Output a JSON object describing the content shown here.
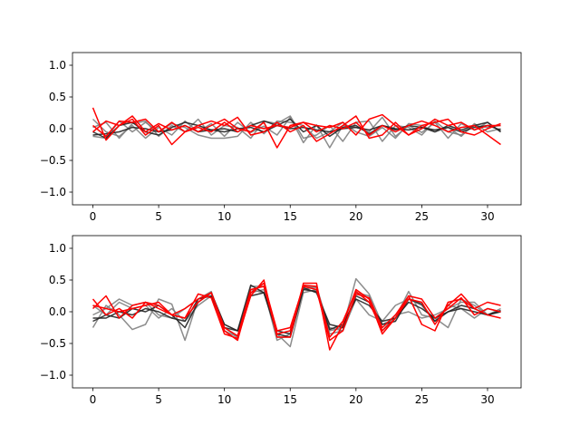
{
  "figure": {
    "background": "#ffffff"
  },
  "colors": {
    "gray": "#7f7f7f",
    "black": "#222222",
    "red": "#ff0000"
  },
  "chart_data": [
    {
      "type": "line",
      "xlim": [
        -1.55,
        32.55
      ],
      "ylim": [
        -1.2,
        1.2
      ],
      "xticks": [
        0,
        5,
        10,
        15,
        20,
        25,
        30
      ],
      "yticks": [
        -1.0,
        -0.5,
        0.0,
        0.5,
        1.0
      ],
      "xtick_labels": [
        "0",
        "5",
        "10",
        "15",
        "20",
        "25",
        "30"
      ],
      "ytick_labels": [
        "−1.0",
        "−0.5",
        "0.0",
        "0.5",
        "1.0"
      ],
      "x": [
        0,
        1,
        2,
        3,
        4,
        5,
        6,
        7,
        8,
        9,
        10,
        11,
        12,
        13,
        14,
        15,
        16,
        17,
        18,
        19,
        20,
        21,
        22,
        23,
        24,
        25,
        26,
        27,
        28,
        29,
        30,
        31
      ],
      "series": [
        {
          "color": "gray",
          "opacity": 0.9,
          "values": [
            0.15,
            -0.05,
            -0.12,
            0.05,
            -0.15,
            0.02,
            -0.1,
            0.12,
            -0.05,
            0.08,
            -0.12,
            0.1,
            -0.06,
            0.04,
            -0.1,
            0.18,
            -0.22,
            0.06,
            -0.3,
            0.05,
            0.02,
            -0.05,
            0.18,
            -0.12,
            0.05,
            -0.06,
            0.1,
            -0.15,
            0.08,
            -0.02,
            0.1,
            -0.05
          ]
        },
        {
          "color": "gray",
          "opacity": 0.9,
          "values": [
            0.02,
            0.1,
            -0.15,
            0.08,
            0.12,
            -0.12,
            0.05,
            -0.05,
            0.15,
            -0.1,
            0.05,
            0.02,
            -0.15,
            0.12,
            0.08,
            0.2,
            -0.15,
            -0.1,
            0.05,
            -0.2,
            0.1,
            0.12,
            -0.2,
            0.05,
            0.02,
            -0.1,
            0.12,
            -0.05,
            -0.1,
            0.05,
            0.02,
            0.05
          ]
        },
        {
          "color": "gray",
          "opacity": 0.9,
          "values": [
            -0.12,
            -0.15,
            0.12,
            -0.05,
            0.1,
            -0.05,
            0.08,
            0.02,
            -0.1,
            -0.15,
            -0.15,
            -0.12,
            0.1,
            -0.08,
            0.12,
            0.1,
            0.05,
            -0.15,
            -0.05,
            0.1,
            -0.05,
            -0.12,
            0.02,
            -0.15,
            0.08,
            0.05,
            -0.05,
            0.02,
            -0.12,
            0.08,
            -0.05,
            0.0
          ]
        },
        {
          "color": "black",
          "opacity": 0.9,
          "values": [
            -0.05,
            -0.15,
            0.05,
            0.1,
            -0.05,
            -0.1,
            0.02,
            0.1,
            0.05,
            -0.02,
            0.0,
            -0.05,
            0.05,
            0.12,
            0.05,
            0.15,
            -0.05,
            0.05,
            -0.12,
            0.02,
            0.05,
            -0.08,
            0.05,
            -0.02,
            0.05,
            0.02,
            -0.05,
            0.05,
            -0.02,
            0.05,
            0.1,
            -0.05
          ]
        },
        {
          "color": "black",
          "opacity": 0.9,
          "values": [
            -0.1,
            -0.08,
            -0.05,
            0.02,
            0.0,
            -0.05,
            -0.02,
            0.05,
            -0.05,
            -0.02,
            -0.05,
            0.0,
            0.02,
            -0.05,
            0.05,
            0.0,
            0.02,
            -0.02,
            -0.05,
            0.0,
            0.02,
            -0.02,
            0.05,
            0.0,
            -0.02,
            0.02,
            -0.02,
            0.02,
            -0.05,
            0.02,
            0.05,
            -0.02
          ]
        },
        {
          "color": "red",
          "opacity": 1.0,
          "values": [
            0.33,
            -0.18,
            0.05,
            0.2,
            -0.05,
            0.08,
            -0.02,
            0.05,
            -0.05,
            0.05,
            0.15,
            0.0,
            -0.05,
            0.1,
            -0.3,
            0.05,
            0.1,
            -0.05,
            0.05,
            0.0,
            0.1,
            -0.1,
            0.05,
            -0.05,
            0.05,
            0.12,
            0.05,
            -0.05,
            0.02,
            0.05,
            -0.1,
            -0.25
          ]
        },
        {
          "color": "red",
          "opacity": 1.0,
          "values": [
            0.05,
            -0.12,
            0.12,
            0.1,
            0.15,
            -0.05,
            0.1,
            -0.05,
            0.05,
            0.12,
            0.05,
            0.18,
            -0.1,
            -0.05,
            0.1,
            -0.05,
            0.05,
            -0.2,
            -0.08,
            0.05,
            0.2,
            -0.15,
            -0.1,
            0.1,
            -0.1,
            0.05,
            0.1,
            0.15,
            -0.05,
            -0.1,
            0.0,
            0.08
          ]
        },
        {
          "color": "red",
          "opacity": 1.0,
          "values": [
            -0.05,
            0.12,
            0.05,
            0.15,
            -0.1,
            0.05,
            -0.25,
            -0.05,
            0.02,
            -0.05,
            0.1,
            -0.05,
            0.05,
            0.0,
            0.05,
            0.02,
            0.1,
            0.05,
            0.02,
            0.1,
            -0.1,
            0.15,
            0.22,
            0.05,
            -0.1,
            0.0,
            0.15,
            0.05,
            0.1,
            -0.02,
            0.05,
            0.05
          ]
        }
      ]
    },
    {
      "type": "line",
      "xlim": [
        -1.55,
        32.55
      ],
      "ylim": [
        -1.2,
        1.2
      ],
      "xticks": [
        0,
        5,
        10,
        15,
        20,
        25,
        30
      ],
      "yticks": [
        -1.0,
        -0.5,
        0.0,
        0.5,
        1.0
      ],
      "xtick_labels": [
        "0",
        "5",
        "10",
        "15",
        "20",
        "25",
        "30"
      ],
      "ytick_labels": [
        "−1.0",
        "−0.5",
        "0.0",
        "0.5",
        "1.0"
      ],
      "x": [
        0,
        1,
        2,
        3,
        4,
        5,
        6,
        7,
        8,
        9,
        10,
        11,
        12,
        13,
        14,
        15,
        16,
        17,
        18,
        19,
        20,
        21,
        22,
        23,
        24,
        25,
        26,
        27,
        28,
        29,
        30,
        31
      ],
      "series": [
        {
          "color": "gray",
          "opacity": 0.9,
          "values": [
            -0.25,
            0.1,
            -0.05,
            -0.28,
            -0.2,
            0.2,
            0.12,
            -0.45,
            0.2,
            0.32,
            -0.3,
            -0.4,
            0.3,
            0.35,
            -0.45,
            -0.35,
            0.35,
            0.4,
            -0.3,
            -0.25,
            0.52,
            0.28,
            -0.2,
            -0.1,
            0.32,
            -0.05,
            -0.1,
            -0.25,
            0.2,
            0.1,
            -0.05,
            0.05
          ]
        },
        {
          "color": "gray",
          "opacity": 0.9,
          "values": [
            0.1,
            -0.05,
            0.15,
            0.05,
            0.1,
            -0.1,
            0.05,
            -0.15,
            0.1,
            0.25,
            -0.2,
            -0.3,
            0.35,
            0.3,
            -0.35,
            -0.55,
            0.3,
            0.35,
            -0.25,
            -0.3,
            0.2,
            -0.05,
            -0.15,
            0.1,
            0.2,
            0.1,
            -0.15,
            0.1,
            0.05,
            -0.1,
            0.05,
            0.0
          ]
        },
        {
          "color": "gray",
          "opacity": 0.9,
          "values": [
            -0.05,
            0.05,
            0.2,
            0.1,
            0.15,
            -0.05,
            -0.1,
            0.05,
            0.2,
            0.3,
            -0.25,
            -0.4,
            0.4,
            0.4,
            -0.4,
            -0.4,
            0.4,
            0.38,
            -0.35,
            -0.3,
            0.3,
            0.25,
            -0.3,
            -0.05,
            0.0,
            -0.1,
            -0.05,
            0.05,
            0.15,
            0.15,
            -0.05,
            0.0
          ]
        },
        {
          "color": "black",
          "opacity": 0.9,
          "values": [
            -0.15,
            -0.05,
            -0.1,
            0.05,
            0.0,
            0.1,
            -0.05,
            -0.25,
            0.15,
            0.3,
            -0.2,
            -0.3,
            0.42,
            0.3,
            -0.3,
            -0.35,
            0.38,
            0.3,
            -0.2,
            -0.25,
            0.25,
            0.15,
            -0.2,
            -0.15,
            0.2,
            0.12,
            -0.15,
            0.0,
            0.1,
            0.05,
            -0.05,
            0.0
          ]
        },
        {
          "color": "black",
          "opacity": 0.9,
          "values": [
            -0.1,
            -0.1,
            0.0,
            -0.05,
            0.05,
            0.0,
            -0.1,
            -0.15,
            0.2,
            0.25,
            -0.25,
            -0.3,
            0.25,
            0.3,
            -0.35,
            -0.4,
            0.35,
            0.32,
            -0.28,
            -0.2,
            0.2,
            0.1,
            -0.15,
            -0.1,
            0.15,
            0.05,
            -0.1,
            0.0,
            0.05,
            0.0,
            -0.05,
            0.02
          ]
        },
        {
          "color": "red",
          "opacity": 1.0,
          "values": [
            0.2,
            -0.05,
            0.05,
            -0.1,
            0.15,
            0.05,
            -0.05,
            -0.1,
            0.28,
            0.22,
            -0.35,
            -0.42,
            0.25,
            0.5,
            -0.4,
            -0.4,
            0.45,
            0.45,
            -0.6,
            -0.2,
            0.35,
            0.2,
            -0.35,
            -0.1,
            0.2,
            0.15,
            -0.2,
            0.1,
            0.28,
            0.05,
            -0.05,
            -0.1
          ]
        },
        {
          "color": "red",
          "opacity": 1.0,
          "values": [
            0.05,
            0.25,
            -0.1,
            0.1,
            0.15,
            0.1,
            -0.05,
            0.05,
            0.2,
            0.3,
            -0.3,
            -0.45,
            0.3,
            0.45,
            -0.3,
            -0.25,
            0.4,
            0.35,
            -0.45,
            -0.3,
            0.28,
            0.22,
            -0.25,
            -0.05,
            0.25,
            -0.2,
            -0.3,
            0.15,
            0.2,
            0.05,
            0.15,
            0.1
          ]
        },
        {
          "color": "red",
          "opacity": 1.0,
          "values": [
            0.1,
            0.05,
            0.0,
            0.05,
            0.1,
            0.15,
            -0.05,
            -0.1,
            0.15,
            0.3,
            -0.25,
            -0.38,
            0.35,
            0.4,
            -0.35,
            -0.3,
            0.42,
            0.4,
            -0.4,
            -0.15,
            0.32,
            0.15,
            -0.3,
            -0.1,
            0.25,
            0.2,
            -0.1,
            0.05,
            0.22,
            -0.05,
            0.05,
            0.0
          ]
        }
      ]
    }
  ]
}
